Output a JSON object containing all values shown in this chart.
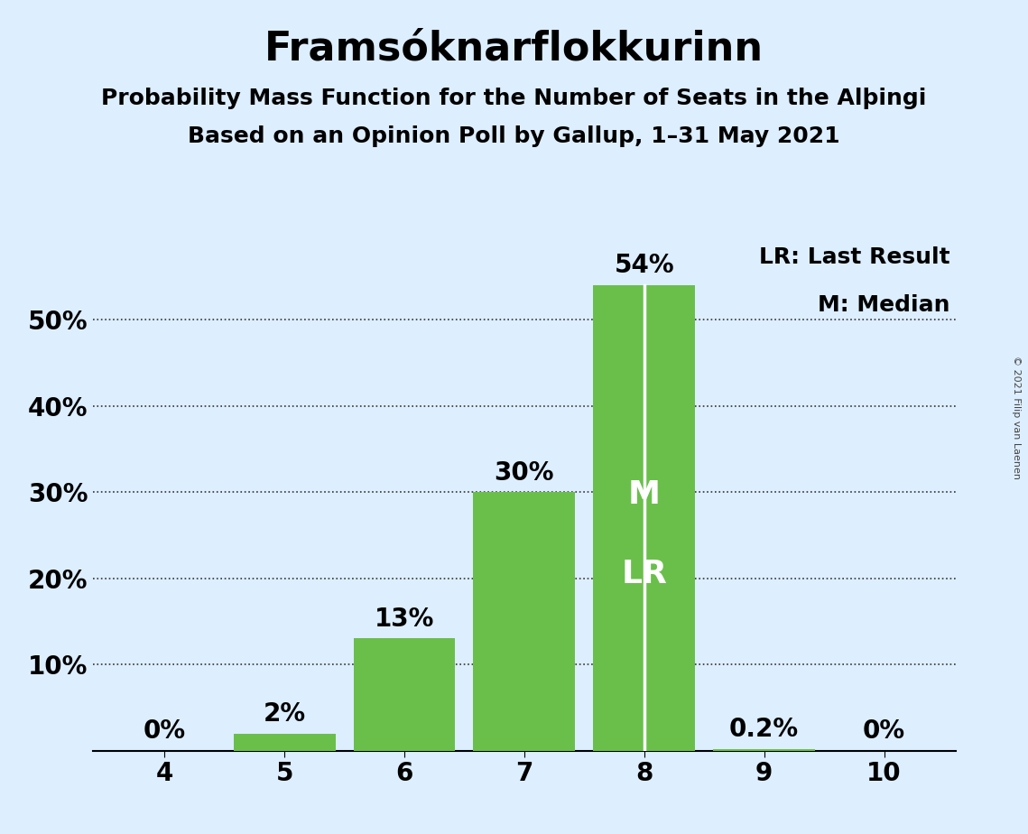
{
  "title": "Framsóknarflokkurinn",
  "subtitle1": "Probability Mass Function for the Number of Seats in the Alþingi",
  "subtitle2": "Based on an Opinion Poll by Gallup, 1–31 May 2021",
  "copyright": "© 2021 Filip van Laenen",
  "categories": [
    4,
    5,
    6,
    7,
    8,
    9,
    10
  ],
  "values": [
    0.0,
    2.0,
    13.0,
    30.0,
    54.0,
    0.2,
    0.0
  ],
  "labels": [
    "0%",
    "2%",
    "13%",
    "30%",
    "54%",
    "0.2%",
    "0%"
  ],
  "bar_color": "#6abf4b",
  "background_color": "#ddeeff",
  "ylim": [
    0,
    60
  ],
  "yticks": [
    0,
    10,
    20,
    30,
    40,
    50
  ],
  "ytick_labels": [
    "",
    "10%",
    "20%",
    "30%",
    "40%",
    "50%"
  ],
  "grid_color": "#333333",
  "median_seat": 8,
  "lr_seat": 8,
  "legend_lr": "LR: Last Result",
  "legend_m": "M: Median",
  "title_fontsize": 32,
  "subtitle_fontsize": 18,
  "label_fontsize": 20,
  "axis_fontsize": 20,
  "legend_fontsize": 18
}
